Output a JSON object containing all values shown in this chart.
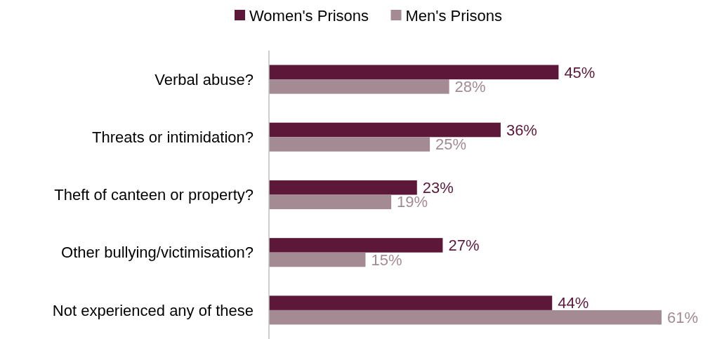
{
  "chart_data": {
    "type": "bar",
    "orientation": "horizontal",
    "categories": [
      "Verbal abuse?",
      "Threats or intimidation?",
      "Theft of canteen or property?",
      "Other bullying/victimisation?",
      "Not experienced any of these"
    ],
    "series": [
      {
        "name": "Women's Prisons",
        "color": "#5c1739",
        "values": [
          45,
          36,
          23,
          27,
          44
        ],
        "value_labels": [
          "45%",
          "36%",
          "23%",
          "27%",
          "44%"
        ]
      },
      {
        "name": "Men's Prisons",
        "color": "#a38a93",
        "values": [
          28,
          25,
          19,
          15,
          61
        ],
        "value_labels": [
          "28%",
          "25%",
          "19%",
          "15%",
          "61%"
        ]
      }
    ],
    "legend": "top"
  }
}
